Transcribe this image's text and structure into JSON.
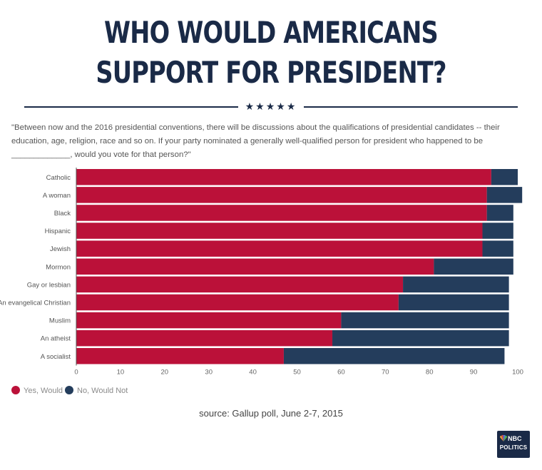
{
  "title": "WHO WOULD AMERICANS SUPPORT FOR PRESIDENT?",
  "stars": "★★★★★",
  "question": "\"Between now and the 2016 presidential conventions, there will be discussions about the qualifications of presidential candidates -- their education, age, religion, race and so on. If your party nominated a generally well-qualified person for president who happened to be _____________, would you vote for that person?\"",
  "source": "source: Gallup poll, June 2-7, 2015",
  "logo": {
    "line1": "NBC",
    "line2": "POLITICS"
  },
  "colors": {
    "yes": "#bb1139",
    "no": "#243d5c",
    "title": "#1a2a47"
  },
  "chart_data": {
    "type": "bar",
    "orientation": "horizontal",
    "stacked": true,
    "categories": [
      "Catholic",
      "A woman",
      "Black",
      "Hispanic",
      "Jewish",
      "Mormon",
      "Gay or lesbian",
      "An evangelical Christian",
      "Muslim",
      "An atheist",
      "A socialist"
    ],
    "series": [
      {
        "name": "Yes, Would",
        "values": [
          94,
          93,
          93,
          92,
          92,
          81,
          74,
          73,
          60,
          58,
          47
        ]
      },
      {
        "name": "No, Would Not",
        "values": [
          6,
          8,
          6,
          7,
          7,
          18,
          24,
          25,
          38,
          40,
          50
        ]
      }
    ],
    "xlim": [
      0,
      100
    ],
    "xticks": [
      "0",
      "10",
      "20",
      "30",
      "40",
      "50",
      "60",
      "70",
      "80",
      "90",
      "100"
    ],
    "legend_position": "bottom-left"
  }
}
